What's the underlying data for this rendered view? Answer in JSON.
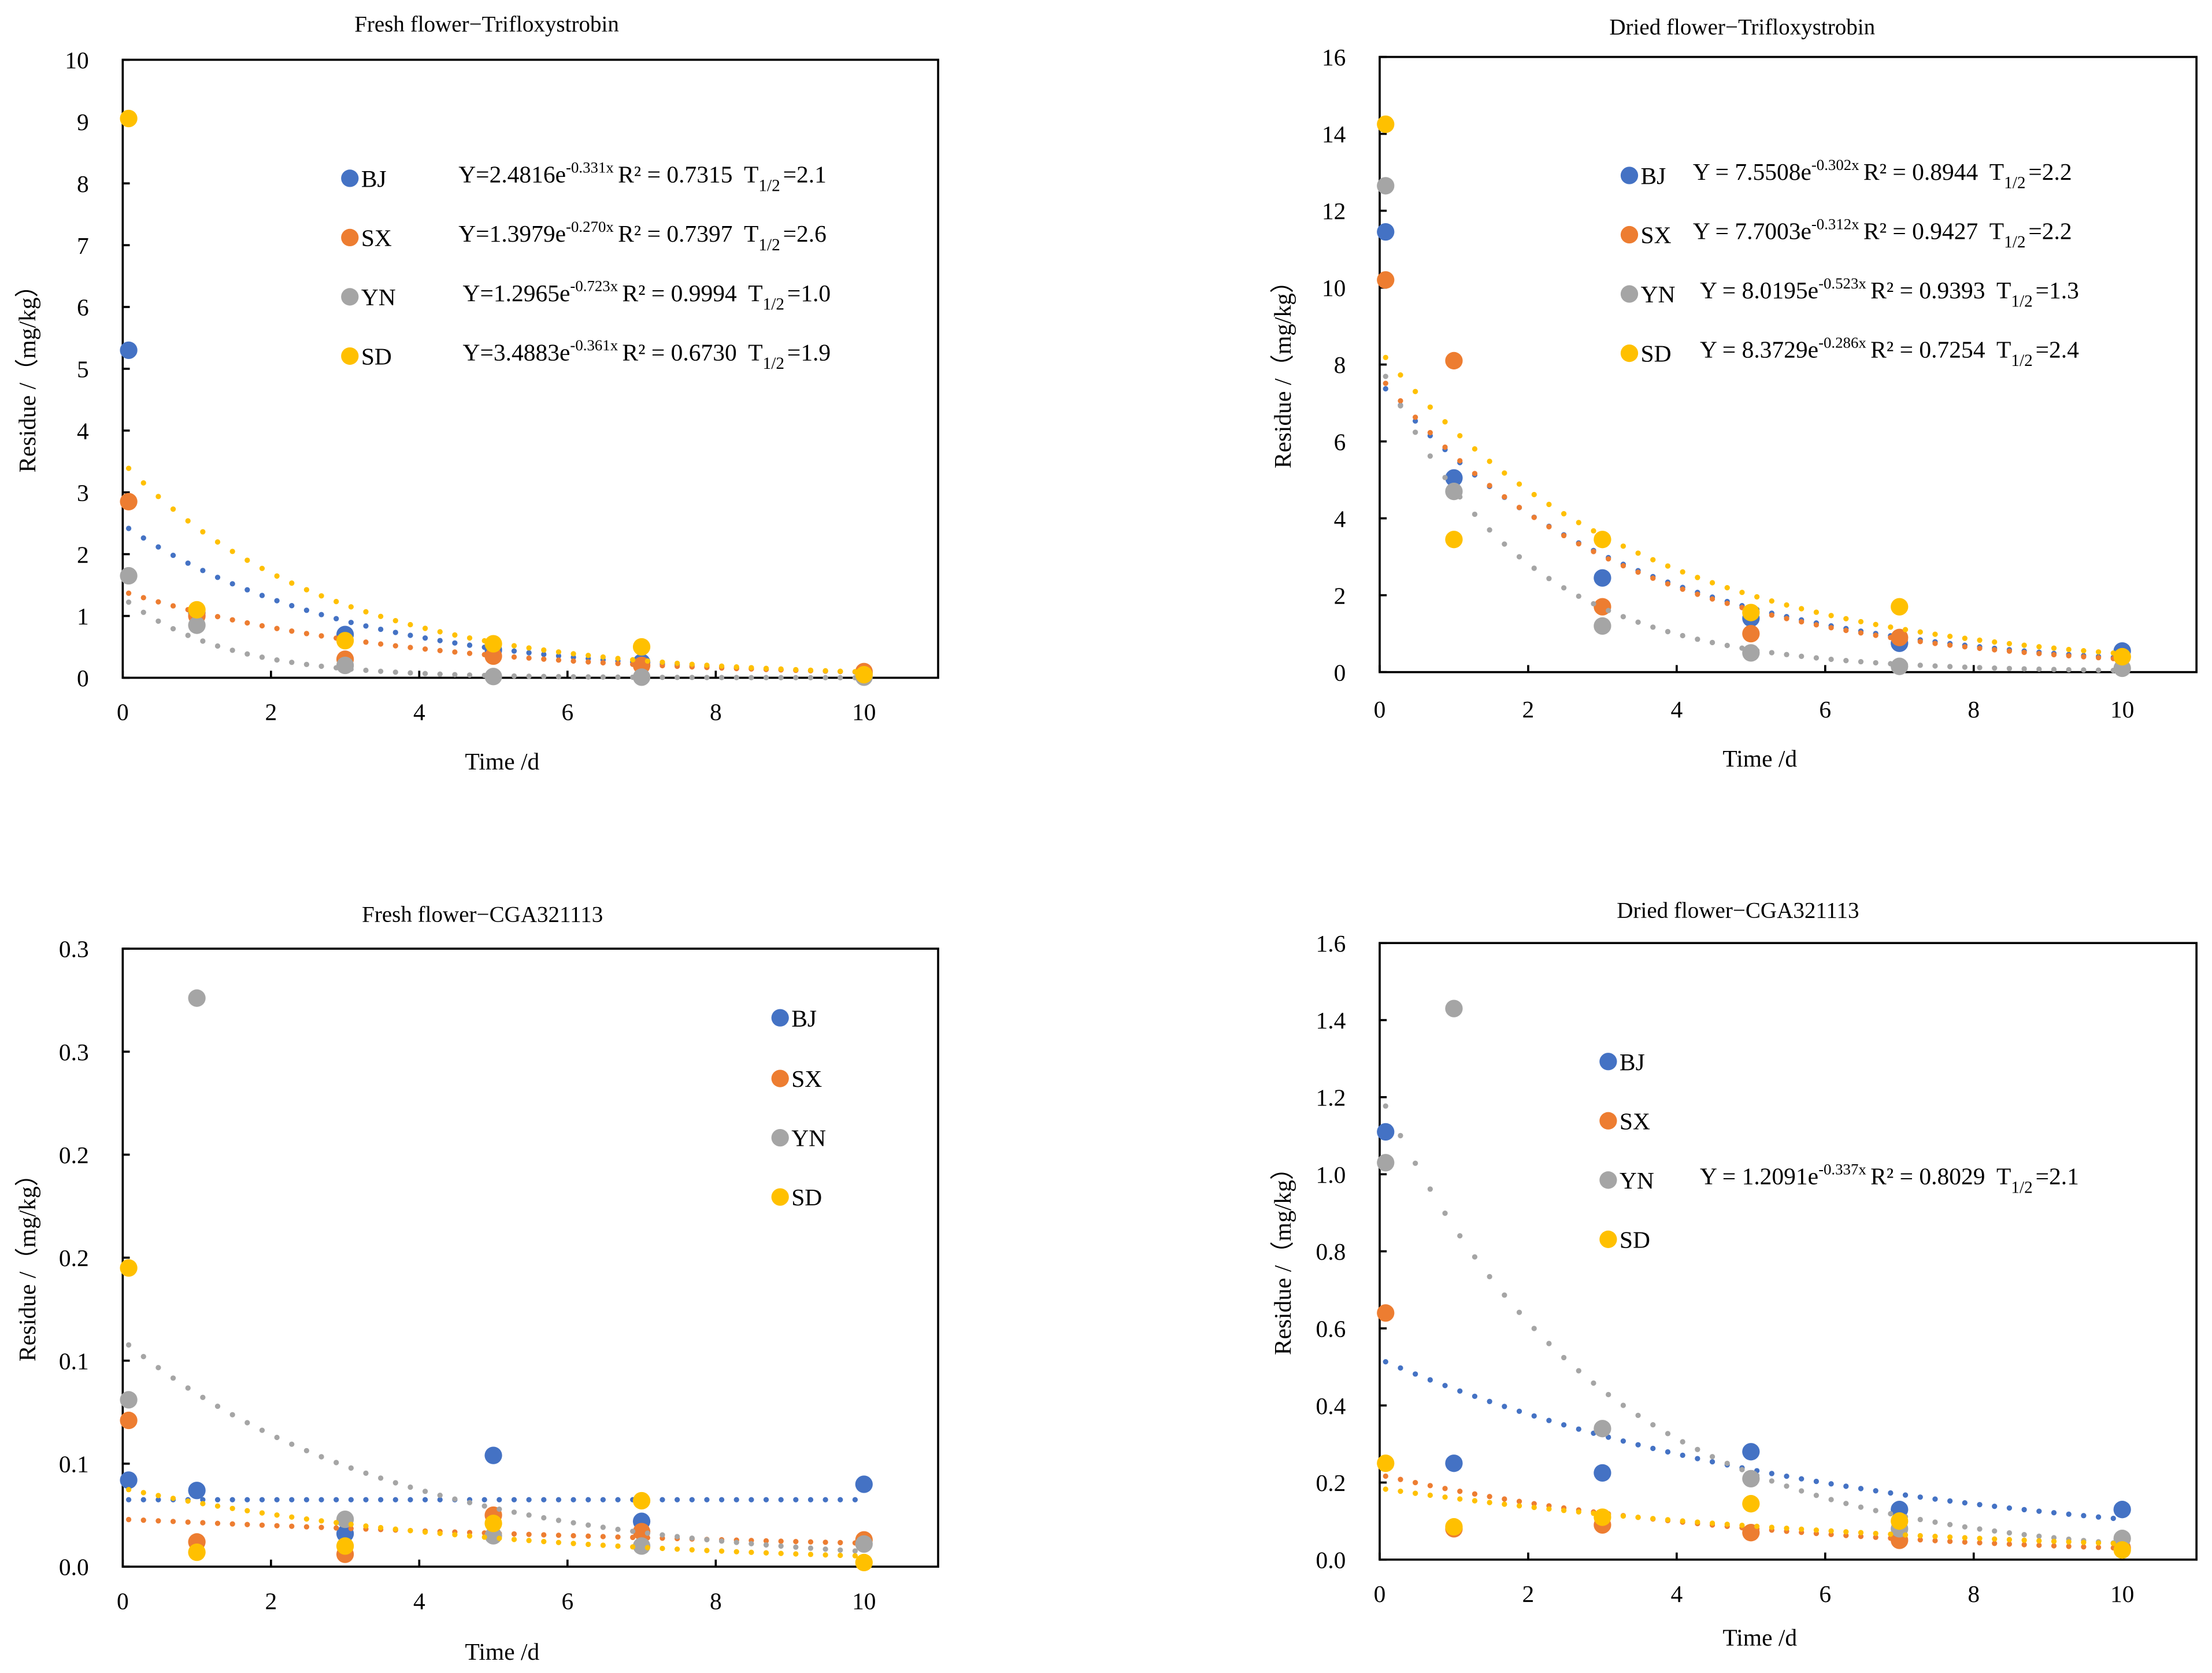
{
  "colors": {
    "BJ": "#4472C4",
    "SX": "#ED7D31",
    "YN": "#A5A5A5",
    "SD": "#FFC000"
  },
  "chart_data": [
    {
      "type": "scatter",
      "title": "Fresh flower−Trifloxystrobin",
      "xlabel": "Time /d",
      "ylabel": "Residue /（mg/kg）",
      "xlim": [
        0,
        11
      ],
      "ylim": [
        0,
        10
      ],
      "x_ticks": [
        0,
        2,
        4,
        6,
        8,
        10
      ],
      "x_tick_labels": [
        "0",
        "2",
        "4",
        "6",
        "8",
        "10"
      ],
      "y_ticks": [
        0,
        1,
        2,
        3,
        4,
        5,
        6,
        7,
        8,
        9,
        10
      ],
      "y_tick_labels": [
        "0",
        "1",
        "2",
        "3",
        "4",
        "5",
        "6",
        "7",
        "8",
        "9",
        "10"
      ],
      "x": [
        0.08,
        1,
        3,
        5,
        7,
        10
      ],
      "series": [
        {
          "name": "BJ",
          "values": [
            5.3,
            1.05,
            0.7,
            0.45,
            0.25,
            0.08
          ],
          "trendline": {
            "a": 2.4816,
            "b": -0.331
          },
          "equation": {
            "y": "Y=2.4816e",
            "exp": "-0.331x",
            "r2": "R² = 0.7315",
            "t": "T",
            "t_sub": "1/2",
            "t_val": "=2.1"
          }
        },
        {
          "name": "SX",
          "values": [
            2.85,
            1.0,
            0.3,
            0.35,
            0.2,
            0.1
          ],
          "trendline": {
            "a": 1.3979,
            "b": -0.27
          },
          "equation": {
            "y": "Y=1.3979e",
            "exp": "-0.270x",
            "r2": "R² = 0.7397",
            "t": "T",
            "t_sub": "1/2",
            "t_val": "=2.6"
          }
        },
        {
          "name": "YN",
          "values": [
            1.65,
            0.85,
            0.2,
            0.02,
            0.01,
            0.01
          ],
          "trendline": {
            "a": 1.2965,
            "b": -0.723
          },
          "equation": {
            "y": "Y=1.2965e",
            "exp": "-0.723x",
            "r2": "R² = 0.9994",
            "t": "T",
            "t_sub": "1/2",
            "t_val": "=1.0"
          }
        },
        {
          "name": "SD",
          "values": [
            9.05,
            1.1,
            0.6,
            0.55,
            0.5,
            0.05
          ],
          "trendline": {
            "a": 3.4883,
            "b": -0.361
          },
          "equation": {
            "y": "Y=3.4883e",
            "exp": "-0.361x",
            "r2": "R² = 0.6730",
            "t": "T",
            "t_sub": "1/2",
            "t_val": "=1.9"
          }
        }
      ]
    },
    {
      "type": "scatter",
      "title": "Dried flower−Trifloxystrobin",
      "xlabel": "Time /d",
      "ylabel": "Residue /（mg/kg）",
      "xlim": [
        0,
        11
      ],
      "ylim": [
        0,
        16
      ],
      "x_ticks": [
        0,
        2,
        4,
        6,
        8,
        10
      ],
      "x_tick_labels": [
        "0",
        "2",
        "4",
        "6",
        "8",
        "10"
      ],
      "y_ticks": [
        0,
        2,
        4,
        6,
        8,
        10,
        12,
        14,
        16
      ],
      "y_tick_labels": [
        "0",
        "2",
        "4",
        "6",
        "8",
        "10",
        "12",
        "14",
        "16"
      ],
      "x": [
        0.08,
        1,
        3,
        5,
        7,
        10
      ],
      "series": [
        {
          "name": "BJ",
          "values": [
            11.45,
            5.05,
            2.45,
            1.4,
            0.75,
            0.55
          ],
          "trendline": {
            "a": 7.5508,
            "b": -0.302
          },
          "equation": {
            "y": "Y = 7.5508e",
            "exp": "-0.302x",
            "r2": "R² = 0.8944",
            "t": "T",
            "t_sub": "1/2",
            "t_val": "=2.2"
          }
        },
        {
          "name": "SX",
          "values": [
            10.2,
            8.1,
            1.7,
            1.0,
            0.9,
            0.4
          ],
          "trendline": {
            "a": 7.7003,
            "b": -0.312
          },
          "equation": {
            "y": "Y = 7.7003e",
            "exp": "-0.312x",
            "r2": "R² = 0.9427",
            "t": "T",
            "t_sub": "1/2",
            "t_val": "=2.2"
          }
        },
        {
          "name": "YN",
          "values": [
            12.65,
            4.7,
            1.2,
            0.5,
            0.15,
            0.1
          ],
          "trendline": {
            "a": 8.0195,
            "b": -0.523
          },
          "equation": {
            "y": "Y = 8.0195e",
            "exp": "-0.523x",
            "r2": "R² = 0.9393",
            "t": "T",
            "t_sub": "1/2",
            "t_val": "=1.3"
          }
        },
        {
          "name": "SD",
          "values": [
            14.25,
            3.45,
            3.45,
            1.55,
            1.7,
            0.4
          ],
          "trendline": {
            "a": 8.3729,
            "b": -0.286
          },
          "equation": {
            "y": "Y = 8.3729e",
            "exp": "-0.286x",
            "r2": "R² = 0.7254",
            "t": "T",
            "t_sub": "1/2",
            "t_val": "=2.4"
          }
        }
      ]
    },
    {
      "type": "scatter",
      "title": "Fresh flower−CGA321113",
      "xlabel": "Time /d",
      "ylabel": "Residue /（mg/kg）",
      "xlim": [
        0,
        11
      ],
      "ylim": [
        0,
        0.3
      ],
      "x_ticks": [
        0,
        2,
        4,
        6,
        8,
        10
      ],
      "x_tick_labels": [
        "0",
        "2",
        "4",
        "6",
        "8",
        "10"
      ],
      "y_ticks": [
        0,
        0.05,
        0.1,
        0.15,
        0.2,
        0.25,
        0.3
      ],
      "y_tick_labels": [
        "0.0",
        "0.1",
        "0.1",
        "0.2",
        "0.2",
        "0.3",
        "0.3"
      ],
      "x": [
        0.08,
        1,
        3,
        5,
        7,
        10
      ],
      "series": [
        {
          "name": "BJ",
          "values": [
            0.042,
            0.037,
            0.016,
            0.054,
            0.022,
            0.04
          ],
          "trendline": {
            "a": 0.0325,
            "b": 0
          }
        },
        {
          "name": "SX",
          "values": [
            0.071,
            0.012,
            0.006,
            0.025,
            0.017,
            0.013
          ],
          "trendline": {
            "a": 0.023,
            "b": -0.07
          }
        },
        {
          "name": "YN",
          "values": [
            0.081,
            0.276,
            0.023,
            0.015,
            0.01,
            0.011
          ],
          "trendline": {
            "a": 0.11,
            "b": -0.27
          }
        },
        {
          "name": "SD",
          "values": [
            0.145,
            0.007,
            0.01,
            0.021,
            0.032,
            0.002
          ],
          "trendline": {
            "a": 0.038,
            "b": -0.2
          }
        }
      ]
    },
    {
      "type": "scatter",
      "title": "Dried flower−CGA321113",
      "xlabel": "Time /d",
      "ylabel": "Residue /（mg/kg）",
      "xlim": [
        0,
        11
      ],
      "ylim": [
        0,
        1.6
      ],
      "x_ticks": [
        0,
        2,
        4,
        6,
        8,
        10
      ],
      "x_tick_labels": [
        "0",
        "2",
        "4",
        "6",
        "8",
        "10"
      ],
      "y_ticks": [
        0,
        0.2,
        0.4,
        0.6,
        0.8,
        1.0,
        1.2,
        1.4,
        1.6
      ],
      "y_tick_labels": [
        "0.0",
        "0.2",
        "0.4",
        "0.6",
        "0.8",
        "1.0",
        "1.2",
        "1.4",
        "1.6"
      ],
      "x": [
        0.08,
        1,
        3,
        5,
        7,
        10
      ],
      "series": [
        {
          "name": "BJ",
          "values": [
            1.11,
            0.25,
            0.225,
            0.28,
            0.13,
            0.13
          ],
          "trendline": {
            "a": 0.52,
            "b": -0.16
          }
        },
        {
          "name": "SX",
          "values": [
            0.64,
            0.08,
            0.09,
            0.07,
            0.05,
            0.03
          ],
          "trendline": {
            "a": 0.22,
            "b": -0.2
          }
        },
        {
          "name": "YN",
          "values": [
            1.03,
            1.43,
            0.34,
            0.21,
            0.08,
            0.055
          ],
          "trendline": {
            "a": 1.2091,
            "b": -0.337
          },
          "equation": {
            "y": "Y = 1.2091e",
            "exp": "-0.337x",
            "r2": "R² = 0.8029",
            "t": "T",
            "t_sub": "1/2",
            "t_val": "=2.1"
          }
        },
        {
          "name": "SD",
          "values": [
            0.25,
            0.085,
            0.11,
            0.145,
            0.1,
            0.025
          ],
          "trendline": {
            "a": 0.185,
            "b": -0.15
          }
        }
      ]
    }
  ]
}
